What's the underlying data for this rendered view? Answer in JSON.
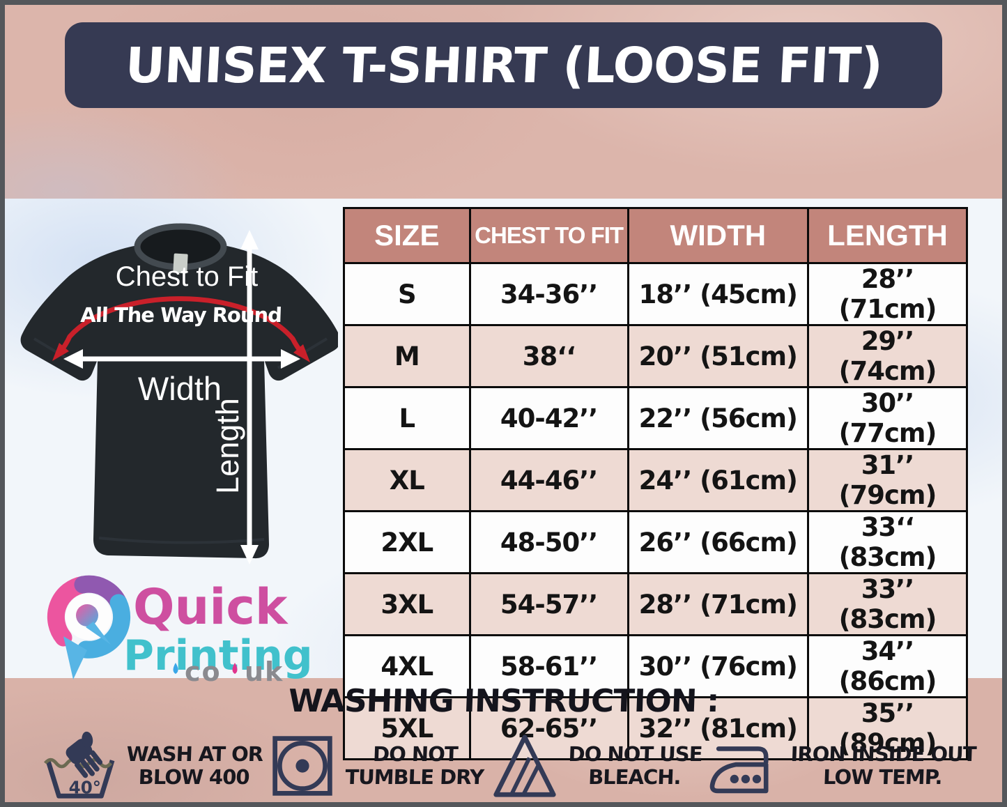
{
  "title": "UNISEX T-SHIRT (LOOSE FIT)",
  "tshirt_diagram": {
    "chest_label": "Chest to Fit",
    "chest_sublabel": "All The Way Round",
    "width_label": "Width",
    "length_label": "Length"
  },
  "logo": {
    "word1": "Quick",
    "word2": "Printing",
    "tld_co": "co",
    "tld_uk": "uk"
  },
  "size_table": {
    "headers": [
      "SIZE",
      "CHEST TO FIT",
      "WIDTH",
      "LENGTH"
    ],
    "rows": [
      {
        "size": "S",
        "chest": "34-36’’",
        "width": "18’’ (45cm)",
        "length": "28’’ (71cm)"
      },
      {
        "size": "M",
        "chest": "38‘‘",
        "width": "20’’ (51cm)",
        "length": "29’’ (74cm)"
      },
      {
        "size": "L",
        "chest": "40-42’’",
        "width": "22’’ (56cm)",
        "length": "30’’ (77cm)"
      },
      {
        "size": "XL",
        "chest": "44-46’’",
        "width": "24’’ (61cm)",
        "length": "31’’ (79cm)"
      },
      {
        "size": "2XL",
        "chest": "48-50’’",
        "width": "26’’ (66cm)",
        "length": "33‘‘ (83cm)"
      },
      {
        "size": "3XL",
        "chest": "54-57’’",
        "width": "28’’ (71cm)",
        "length": "33’’ (83cm)"
      },
      {
        "size": "4XL",
        "chest": "58-61’’",
        "width": "30’’ (76cm)",
        "length": "34’’ (86cm)"
      },
      {
        "size": "5XL",
        "chest": "62-65’’",
        "width": "32’’ (81cm)",
        "length": "35’’ (89cm)"
      }
    ]
  },
  "washing": {
    "title": "WASHING INSTRUCTION :",
    "items": [
      {
        "icon": "hand-wash-40-icon",
        "temp": "40°",
        "line1": "WASH AT OR",
        "line2": "BLOW 400"
      },
      {
        "icon": "do-not-tumble-dry-icon",
        "line1": "DO NOT",
        "line2": "TUMBLE DRY"
      },
      {
        "icon": "do-not-bleach-icon",
        "line1": "DO NOT USE",
        "line2": "BLEACH."
      },
      {
        "icon": "iron-low-temp-icon",
        "line1": "IRON INSIDE OUT",
        "line2": "LOW TEMP."
      }
    ]
  },
  "colors": {
    "frame_gray": "#54575b",
    "band_pink": "#dcb5ab",
    "header_navy": "#363a53",
    "table_header_salmon": "#c2857b",
    "row_pink": "#eedad3",
    "arrow_red": "#c9202a",
    "icon_navy": "#333a56",
    "logo_pink": "#ce4fa0",
    "logo_teal": "#41c1cc",
    "logo_gray": "#8a8a8f"
  }
}
